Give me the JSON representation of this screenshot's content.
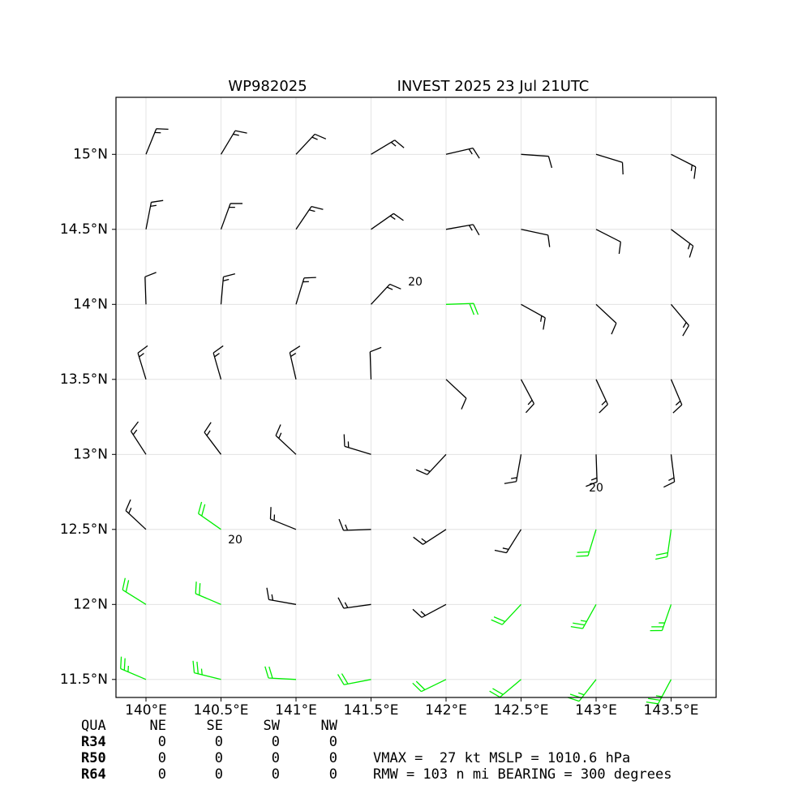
{
  "chart_data": {
    "type": "barbs",
    "title_left": "WP982025",
    "title_right": "INVEST 2025 23 Jul 21UTC",
    "xlim": [
      139.8,
      143.8
    ],
    "ylim": [
      11.38,
      15.38
    ],
    "xticks": [
      {
        "value": 140,
        "label": "140°E"
      },
      {
        "value": 140.5,
        "label": "140.5°E"
      },
      {
        "value": 141,
        "label": "141°E"
      },
      {
        "value": 141.5,
        "label": "141.5°E"
      },
      {
        "value": 142,
        "label": "142°E"
      },
      {
        "value": 142.5,
        "label": "142.5°E"
      },
      {
        "value": 143,
        "label": "143°E"
      },
      {
        "value": 143.5,
        "label": "143.5°E"
      }
    ],
    "yticks": [
      {
        "value": 11.5,
        "label": "11.5°N"
      },
      {
        "value": 12,
        "label": "12°N"
      },
      {
        "value": 12.5,
        "label": "12.5°N"
      },
      {
        "value": 13,
        "label": "13°N"
      },
      {
        "value": 13.5,
        "label": "13.5°N"
      },
      {
        "value": 14,
        "label": "14°N"
      },
      {
        "value": 14.5,
        "label": "14.5°N"
      },
      {
        "value": 15,
        "label": "15°N"
      }
    ],
    "grid": true,
    "color": "#000000",
    "highlight_color": "#00ee00",
    "contour_labels": [
      20,
      20,
      20
    ],
    "lats": [
      15.0,
      14.5,
      14.0,
      13.5,
      13.0,
      12.5,
      12.0,
      11.5
    ],
    "lons": [
      140.0,
      140.5,
      141.0,
      141.5,
      142.0,
      142.5,
      143.0,
      143.5
    ],
    "speed": [
      [
        15,
        15,
        15,
        15,
        15,
        12,
        12,
        15
      ],
      [
        15,
        15,
        15,
        15,
        15,
        12,
        12,
        15
      ],
      [
        10,
        15,
        15,
        15,
        20,
        15,
        12,
        15
      ],
      [
        15,
        15,
        15,
        10,
        10,
        15,
        15,
        15
      ],
      [
        15,
        15,
        15,
        15,
        15,
        15,
        15,
        15
      ],
      [
        15,
        20,
        15,
        15,
        15,
        15,
        20,
        20
      ],
      [
        20,
        20,
        15,
        15,
        15,
        20,
        25,
        25
      ],
      [
        25,
        25,
        20,
        20,
        20,
        20,
        25,
        25
      ]
    ],
    "direction": [
      [
        22,
        31,
        43,
        59,
        77,
        94,
        107,
        117
      ],
      [
        11,
        20,
        34,
        55,
        80,
        102,
        117,
        127
      ],
      [
        358,
        5,
        17,
        43,
        88,
        119,
        133,
        140
      ],
      [
        343,
        344,
        347,
        358,
        133,
        152,
        155,
        157
      ],
      [
        327,
        323,
        313,
        287,
        223,
        190,
        178,
        173
      ],
      [
        313,
        305,
        292,
        268,
        237,
        212,
        197,
        188
      ],
      [
        302,
        293,
        280,
        262,
        242,
        223,
        209,
        199
      ],
      [
        293,
        284,
        273,
        259,
        244,
        230,
        218,
        208
      ]
    ]
  },
  "table": {
    "header": [
      "QUA",
      "NE",
      "SE",
      "SW",
      "NW"
    ],
    "rows": [
      [
        "R34",
        "0",
        "0",
        "0",
        "0"
      ],
      [
        "R50",
        "0",
        "0",
        "0",
        "0"
      ],
      [
        "R64",
        "0",
        "0",
        "0",
        "0"
      ]
    ]
  },
  "summary": [
    "VMAX =  27 kt MSLP = 1010.6 hPa",
    "RMW = 103 n mi BEARING = 300 degrees"
  ]
}
